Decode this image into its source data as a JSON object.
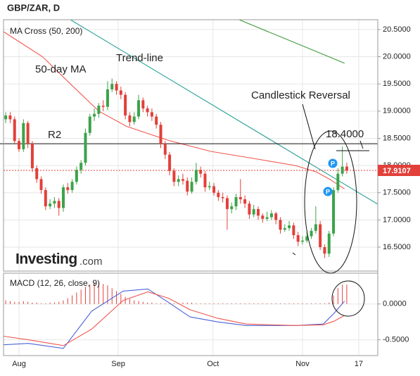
{
  "chart_data": [
    {
      "type": "candlestick",
      "title": "GBP/ZAR, D",
      "panel_label": "MA Cross (50, 200)",
      "open": [
        18.85,
        18.92,
        18.85,
        18.45,
        18.3,
        18.78,
        18.4,
        17.95,
        17.75,
        17.55,
        17.25,
        17.3,
        17.35,
        17.22,
        17.6,
        17.55,
        17.7,
        17.92,
        18.05,
        18.6,
        18.9,
        18.95,
        19.1,
        19.08,
        19.4,
        19.5,
        19.38,
        19.3,
        18.92,
        18.8,
        18.9,
        19.2,
        19.05,
        18.98,
        18.9,
        18.75,
        18.4,
        18.2,
        17.9,
        17.7,
        17.75,
        17.72,
        17.52,
        17.7,
        17.92,
        17.85,
        17.6,
        17.62,
        17.5,
        17.42,
        17.4,
        17.2,
        17.25,
        17.42,
        17.38,
        17.3,
        17.1,
        17.2,
        17.08,
        17.02,
        17.05,
        17.12,
        17.0,
        16.82,
        16.85,
        16.9,
        16.72,
        16.6,
        16.62,
        16.7,
        16.8,
        16.92,
        16.5,
        16.38,
        16.75,
        17.55,
        17.85,
        17.98
      ],
      "high": [
        18.98,
        18.98,
        18.9,
        18.5,
        18.85,
        18.82,
        18.45,
        18.0,
        17.8,
        17.6,
        17.38,
        17.42,
        17.4,
        17.65,
        17.68,
        17.75,
        17.98,
        18.1,
        18.68,
        18.95,
        19.05,
        19.15,
        19.2,
        19.55,
        19.6,
        19.55,
        19.45,
        19.35,
        18.98,
        18.98,
        19.3,
        19.25,
        19.1,
        19.05,
        18.95,
        18.8,
        18.45,
        18.25,
        17.95,
        17.82,
        17.85,
        17.78,
        17.78,
        18.05,
        17.98,
        17.9,
        17.7,
        17.68,
        17.55,
        17.5,
        17.45,
        17.32,
        17.48,
        17.75,
        17.45,
        17.35,
        17.28,
        17.25,
        17.12,
        17.15,
        17.18,
        17.15,
        17.05,
        16.92,
        16.98,
        16.95,
        16.78,
        16.7,
        16.78,
        16.85,
        17.25,
        16.98,
        16.55,
        16.8,
        17.6,
        17.95,
        18.35,
        18.05
      ],
      "low": [
        18.78,
        18.78,
        18.4,
        18.25,
        18.25,
        18.32,
        17.88,
        17.68,
        17.48,
        17.18,
        17.2,
        17.22,
        17.08,
        17.15,
        17.48,
        17.5,
        17.65,
        17.85,
        18.0,
        18.55,
        18.82,
        18.88,
        19.0,
        19.02,
        19.35,
        19.3,
        19.22,
        18.85,
        18.72,
        18.75,
        18.85,
        18.98,
        18.9,
        18.82,
        18.68,
        18.32,
        18.12,
        17.82,
        17.62,
        17.62,
        17.65,
        17.45,
        17.48,
        17.65,
        17.78,
        17.52,
        17.55,
        17.45,
        17.35,
        17.32,
        16.82,
        17.12,
        17.18,
        17.3,
        17.22,
        17.02,
        17.05,
        17.0,
        16.95,
        16.98,
        17.0,
        16.92,
        16.75,
        16.78,
        16.8,
        16.65,
        16.52,
        16.55,
        16.58,
        16.65,
        16.75,
        16.45,
        16.3,
        16.32,
        16.7,
        17.5,
        17.8,
        17.85
      ],
      "close": [
        18.92,
        18.85,
        18.45,
        18.3,
        18.78,
        18.4,
        17.95,
        17.75,
        17.55,
        17.25,
        17.3,
        17.35,
        17.22,
        17.6,
        17.55,
        17.7,
        17.92,
        18.05,
        18.6,
        18.9,
        18.95,
        19.1,
        19.08,
        19.4,
        19.5,
        19.38,
        19.3,
        18.92,
        18.8,
        18.9,
        19.2,
        19.05,
        18.98,
        18.9,
        18.75,
        18.4,
        18.2,
        17.9,
        17.7,
        17.75,
        17.72,
        17.52,
        17.7,
        17.92,
        17.85,
        17.6,
        17.62,
        17.5,
        17.42,
        17.4,
        17.2,
        17.25,
        17.42,
        17.38,
        17.3,
        17.1,
        17.2,
        17.08,
        17.02,
        17.05,
        17.12,
        17.0,
        16.82,
        16.85,
        16.9,
        16.72,
        16.6,
        16.62,
        16.7,
        16.8,
        16.92,
        16.5,
        16.38,
        16.75,
        17.55,
        17.85,
        17.98,
        17.91
      ],
      "up_color": "#3ca34a",
      "down_color": "#e2403a",
      "xlim": [
        -0.5,
        84
      ],
      "xticks": [
        {
          "value": 3,
          "label": "Aug"
        },
        {
          "value": 25.4,
          "label": "Sep"
        },
        {
          "value": 46.8,
          "label": "Oct"
        },
        {
          "value": 67,
          "label": "Nov"
        },
        {
          "value": 79.7,
          "label": "17"
        }
      ],
      "ylim": [
        16.06,
        20.68
      ],
      "yticks": [
        {
          "value": 16.5,
          "label": "16.5000"
        },
        {
          "value": 17,
          "label": "17.0000"
        },
        {
          "value": 17.5,
          "label": "17.5000"
        },
        {
          "value": 18,
          "label": "18.0000"
        },
        {
          "value": 18.5,
          "label": "18.5000"
        },
        {
          "value": 19,
          "label": "19.0000"
        },
        {
          "value": 19.5,
          "label": "19.5000"
        },
        {
          "value": 20,
          "label": "20.0000"
        },
        {
          "value": 20.5,
          "label": "20.5000"
        }
      ],
      "grid": true,
      "lines": [
        {
          "name": "50-day MA",
          "color": "#f0584f",
          "x": [
            -0.5,
            8.3,
            14.6,
            21,
            27.3,
            36.8,
            46.3,
            55.9,
            65.4,
            70.2,
            73.3,
            76.5
          ],
          "values": [
            20.46,
            20.0,
            19.5,
            19.0,
            18.72,
            18.46,
            18.26,
            18.13,
            18.0,
            17.88,
            17.74,
            17.57
          ]
        },
        {
          "color": "#3a9a3a",
          "x": [
            52.7,
            76.5
          ],
          "values": [
            20.68,
            19.88
          ]
        },
        {
          "name": "Trend-line",
          "color": "#2aa198",
          "x": [
            14.6,
            84
          ],
          "values": [
            20.68,
            17.29
          ]
        }
      ],
      "r2": {
        "label": "R2",
        "value": 18.4,
        "value_label": "18.4000"
      },
      "last_price": {
        "value": 17.9107,
        "label": "17.9107"
      },
      "annotation": "Candlestick Reversal",
      "pivot_label": "P",
      "brand": "Investing",
      "brand_suffix": ".com"
    },
    {
      "type": "macd",
      "title": "MACD (12, 26, close, 9)",
      "ylim": [
        -0.72,
        0.43
      ],
      "yticks": [
        {
          "value": 0,
          "label": "0.0000"
        },
        {
          "value": -0.5,
          "label": "-0.5000"
        }
      ],
      "histogram": {
        "color": "#e2403a",
        "values": [
          0.05,
          0.04,
          0.03,
          0.03,
          0.04,
          0.03,
          0.02,
          0.02,
          0.01,
          0.01,
          0.02,
          0.02,
          0.03,
          0.05,
          0.08,
          0.12,
          0.16,
          0.2,
          0.24,
          0.27,
          0.3,
          0.3,
          0.28,
          0.26,
          0.22,
          0.18,
          0.14,
          0.1,
          0.07,
          0.05,
          0.04,
          0.03,
          0.02,
          0.02,
          0.01,
          0.01,
          0.01,
          0.01,
          0.01,
          0.01,
          0.02,
          0.02,
          0.02,
          0.01,
          0.01,
          0.01,
          0.01,
          0.01,
          0.01,
          0.01,
          0.01,
          0.01,
          0.01,
          0.01,
          0.01,
          0.01,
          0.01,
          0.01,
          0.01,
          0.01,
          0.01,
          0.01,
          0.01,
          0.01,
          0.01,
          0.01,
          0.01,
          0.01,
          0.01,
          0.01,
          0.01,
          0.01,
          0.01,
          0.02,
          0.12,
          0.22,
          0.27,
          0.27
        ]
      },
      "lines": [
        {
          "color": "#4a63d8",
          "x": [
            -0.5,
            5.1,
            13,
            19.4,
            26.5,
            32.1,
            36.8,
            41.6,
            47.9,
            54.3,
            65.4,
            71.7,
            74.1,
            76.5
          ],
          "values": [
            -0.57,
            -0.55,
            -0.62,
            -0.1,
            0.18,
            0.21,
            0.02,
            -0.18,
            -0.25,
            -0.3,
            -0.3,
            -0.28,
            -0.13,
            0.04
          ]
        },
        {
          "color": "#f0584f",
          "x": [
            -0.5,
            5.1,
            13,
            19.4,
            26.5,
            32.1,
            36.8,
            41.6,
            47.9,
            54.3,
            65.4,
            71.7,
            74.1,
            76.5
          ],
          "values": [
            -0.45,
            -0.5,
            -0.58,
            -0.35,
            0.05,
            0.17,
            0.08,
            -0.08,
            -0.2,
            -0.28,
            -0.3,
            -0.29,
            -0.24,
            -0.16
          ]
        }
      ]
    }
  ]
}
